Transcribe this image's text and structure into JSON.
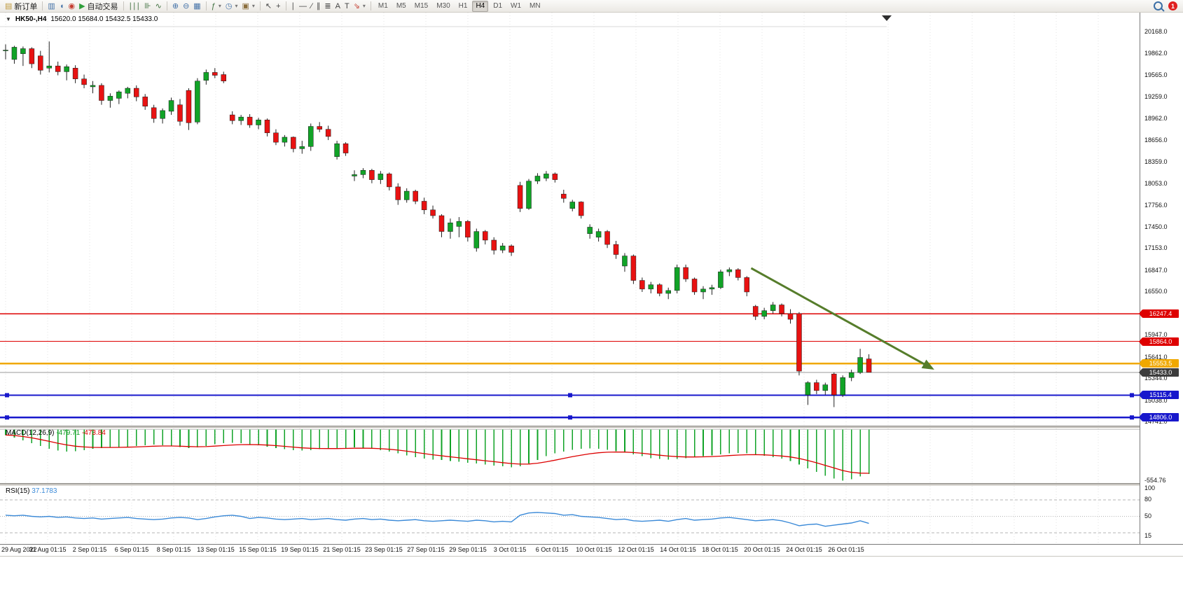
{
  "toolbar": {
    "notification_count": "1",
    "timeframes": [
      "M1",
      "M5",
      "M15",
      "M30",
      "H1",
      "H4",
      "D1",
      "W1",
      "MN"
    ],
    "active_timeframe": "H4",
    "groups": [
      {
        "items": [
          {
            "name": "new-order-button",
            "icon": "new-order-icon",
            "glyph": "▤",
            "glyph_color": "#c09a3e",
            "label": "新订单"
          }
        ]
      },
      {
        "items": [
          {
            "name": "market-watch-button",
            "icon": "market-watch-icon",
            "glyph": "▥",
            "glyph_color": "#4472a8"
          },
          {
            "name": "data-window-button",
            "icon": "data-window-icon",
            "glyph": "◖",
            "glyph_color": "#4472a8"
          },
          {
            "name": "navigator-button",
            "icon": "navigator-icon",
            "glyph": "◉",
            "glyph_color": "#c43b2e"
          },
          {
            "name": "autotrade-button",
            "icon": "autotrade-play-icon",
            "glyph": "▶",
            "glyph_color": "#2e9e3a",
            "label": "自动交易"
          }
        ]
      },
      {
        "items": [
          {
            "name": "bar-chart-button",
            "icon": "bar-chart-icon",
            "glyph": "∣∣∣",
            "glyph_color": "#3e6f3e"
          },
          {
            "name": "candlestick-chart-button",
            "icon": "candlestick-icon",
            "glyph": "⊪",
            "glyph_color": "#3e6f3e"
          },
          {
            "name": "line-chart-button",
            "icon": "line-chart-icon",
            "glyph": "∿",
            "glyph_color": "#3e6f3e"
          }
        ]
      },
      {
        "items": [
          {
            "name": "zoom-in-button",
            "icon": "zoom-in-icon",
            "glyph": "⊕",
            "glyph_color": "#4472a8"
          },
          {
            "name": "zoom-out-button",
            "icon": "zoom-out-icon",
            "glyph": "⊖",
            "glyph_color": "#4472a8"
          },
          {
            "name": "tile-windows-button",
            "icon": "tile-windows-icon",
            "glyph": "▦",
            "glyph_color": "#4472a8"
          }
        ]
      },
      {
        "items": [
          {
            "name": "indicators-button",
            "icon": "indicators-icon",
            "glyph": "ƒ",
            "glyph_color": "#3e6f3e",
            "dropdown": true
          },
          {
            "name": "periods-button",
            "icon": "clock-icon",
            "glyph": "◷",
            "glyph_color": "#4472a8",
            "dropdown": true
          },
          {
            "name": "templates-button",
            "icon": "template-icon",
            "glyph": "▣",
            "glyph_color": "#8a6d3b",
            "dropdown": true
          }
        ]
      },
      {
        "items": [
          {
            "name": "cursor-button",
            "icon": "cursor-icon",
            "glyph": "↖",
            "glyph_color": "#444444"
          },
          {
            "name": "crosshair-button",
            "icon": "crosshair-icon",
            "glyph": "+",
            "glyph_color": "#444444"
          }
        ]
      },
      {
        "items": [
          {
            "name": "vertical-line-button",
            "icon": "vertical-line-icon",
            "glyph": "∣",
            "glyph_color": "#444444"
          },
          {
            "name": "horizontal-line-button",
            "icon": "horizontal-line-icon",
            "glyph": "―",
            "glyph_color": "#444444"
          },
          {
            "name": "trendline-button",
            "icon": "trendline-icon",
            "glyph": "∕",
            "glyph_color": "#444444"
          },
          {
            "name": "channel-button",
            "icon": "channel-icon",
            "glyph": "∥",
            "glyph_color": "#444444"
          },
          {
            "name": "fibonacci-button",
            "icon": "fibonacci-icon",
            "glyph": "≣",
            "glyph_color": "#444444"
          },
          {
            "name": "text-button",
            "icon": "text-icon",
            "glyph": "A",
            "glyph_color": "#444444"
          },
          {
            "name": "label-button",
            "icon": "label-icon",
            "glyph": "T",
            "glyph_color": "#444444"
          },
          {
            "name": "arrows-button",
            "icon": "arrow-object-icon",
            "glyph": "⇘",
            "glyph_color": "#c43b2e",
            "dropdown": true
          }
        ]
      }
    ]
  },
  "chart": {
    "title": "HK50-,H4",
    "ohlc": "15620.0 15684.0 15432.5 15433.0"
  },
  "chart_data": {
    "type": "candlestick",
    "symbol": "HK50-",
    "timeframe": "H4",
    "ohlc_display": {
      "open": "15620.0",
      "high": "15684.0",
      "low": "15432.5",
      "close": "15433.0"
    },
    "ylim": [
      14692,
      20431
    ],
    "colors": {
      "bull": "#11a327",
      "bear": "#e81212",
      "wick": "#222222",
      "grid": "#e3e3e3"
    },
    "y_axis_prices": [
      20168.0,
      19862.0,
      19565.0,
      19259.0,
      18962.0,
      18656.0,
      18359.0,
      18053.0,
      17756.0,
      17450.0,
      17153.0,
      16847.0,
      16550.0,
      15947.0,
      15641.0,
      15344.0,
      15038.0,
      14741.0
    ],
    "candles": [
      [
        19900,
        19990,
        19780,
        19910
      ],
      [
        19780,
        19970,
        19720,
        19950
      ],
      [
        19860,
        19960,
        19690,
        19930
      ],
      [
        19930,
        19950,
        19660,
        19720
      ],
      [
        19830,
        19900,
        19570,
        19630
      ],
      [
        19660,
        20030,
        19600,
        19690
      ],
      [
        19690,
        19750,
        19560,
        19610
      ],
      [
        19610,
        19710,
        19490,
        19680
      ],
      [
        19660,
        19700,
        19450,
        19510
      ],
      [
        19510,
        19570,
        19380,
        19430
      ],
      [
        19400,
        19480,
        19310,
        19420
      ],
      [
        19420,
        19450,
        19150,
        19210
      ],
      [
        19210,
        19310,
        19110,
        19270
      ],
      [
        19240,
        19350,
        19160,
        19330
      ],
      [
        19310,
        19400,
        19240,
        19380
      ],
      [
        19380,
        19420,
        19200,
        19260
      ],
      [
        19260,
        19300,
        19080,
        19130
      ],
      [
        19110,
        19150,
        18900,
        18960
      ],
      [
        18960,
        19100,
        18890,
        19070
      ],
      [
        19060,
        19250,
        19010,
        19210
      ],
      [
        19150,
        19230,
        18860,
        18920
      ],
      [
        19350,
        19380,
        18800,
        18900
      ],
      [
        18910,
        19520,
        18880,
        19480
      ],
      [
        19490,
        19640,
        19430,
        19600
      ],
      [
        19600,
        19660,
        19520,
        19560
      ],
      [
        19570,
        19610,
        19450,
        19480
      ],
      [
        19010,
        19060,
        18880,
        18930
      ],
      [
        18930,
        19010,
        18870,
        18980
      ],
      [
        18980,
        19020,
        18830,
        18870
      ],
      [
        18870,
        18970,
        18810,
        18940
      ],
      [
        18940,
        18960,
        18710,
        18760
      ],
      [
        18760,
        18810,
        18590,
        18630
      ],
      [
        18630,
        18730,
        18570,
        18700
      ],
      [
        18700,
        18710,
        18490,
        18540
      ],
      [
        18540,
        18650,
        18470,
        18570
      ],
      [
        18570,
        18890,
        18510,
        18850
      ],
      [
        18850,
        18910,
        18770,
        18810
      ],
      [
        18810,
        18860,
        18660,
        18710
      ],
      [
        18430,
        18650,
        18390,
        18610
      ],
      [
        18610,
        18630,
        18440,
        18480
      ],
      [
        18160,
        18240,
        18090,
        18180
      ],
      [
        18180,
        18270,
        18130,
        18240
      ],
      [
        18240,
        18260,
        18060,
        18110
      ],
      [
        18110,
        18230,
        18050,
        18190
      ],
      [
        18190,
        18210,
        17960,
        18010
      ],
      [
        18010,
        18060,
        17760,
        17830
      ],
      [
        17830,
        17990,
        17790,
        17950
      ],
      [
        17950,
        17970,
        17770,
        17810
      ],
      [
        17810,
        17860,
        17630,
        17690
      ],
      [
        17690,
        17750,
        17570,
        17610
      ],
      [
        17610,
        17630,
        17310,
        17390
      ],
      [
        17390,
        17570,
        17290,
        17510
      ],
      [
        17460,
        17590,
        17310,
        17530
      ],
      [
        17530,
        17550,
        17250,
        17310
      ],
      [
        17160,
        17430,
        17110,
        17390
      ],
      [
        17390,
        17410,
        17210,
        17270
      ],
      [
        17270,
        17310,
        17070,
        17130
      ],
      [
        17130,
        17230,
        17090,
        17190
      ],
      [
        17190,
        17210,
        17050,
        17100
      ],
      [
        18030,
        18080,
        17660,
        17710
      ],
      [
        17710,
        18120,
        17690,
        18090
      ],
      [
        18090,
        18200,
        18050,
        18160
      ],
      [
        18130,
        18230,
        18090,
        18190
      ],
      [
        18190,
        18210,
        18070,
        18110
      ],
      [
        17910,
        17970,
        17790,
        17850
      ],
      [
        17710,
        17830,
        17670,
        17800
      ],
      [
        17800,
        17810,
        17570,
        17610
      ],
      [
        17360,
        17490,
        17290,
        17450
      ],
      [
        17310,
        17430,
        17250,
        17390
      ],
      [
        17390,
        17410,
        17160,
        17210
      ],
      [
        17210,
        17260,
        17010,
        17070
      ],
      [
        16910,
        17090,
        16830,
        17050
      ],
      [
        17050,
        17070,
        16660,
        16710
      ],
      [
        16710,
        16750,
        16550,
        16590
      ],
      [
        16590,
        16690,
        16530,
        16650
      ],
      [
        16650,
        16670,
        16490,
        16530
      ],
      [
        16530,
        16610,
        16450,
        16570
      ],
      [
        16570,
        16930,
        16530,
        16890
      ],
      [
        16890,
        16930,
        16690,
        16730
      ],
      [
        16730,
        16750,
        16510,
        16550
      ],
      [
        16550,
        16630,
        16450,
        16590
      ],
      [
        16590,
        16650,
        16510,
        16610
      ],
      [
        16610,
        16860,
        16590,
        16830
      ],
      [
        16830,
        16890,
        16770,
        16860
      ],
      [
        16860,
        16880,
        16710,
        16750
      ],
      [
        16750,
        16770,
        16490,
        16550
      ],
      [
        16350,
        16370,
        16160,
        16210
      ],
      [
        16210,
        16330,
        16170,
        16290
      ],
      [
        16290,
        16410,
        16250,
        16370
      ],
      [
        16370,
        16390,
        16210,
        16250
      ],
      [
        16250,
        16310,
        16110,
        16170
      ],
      [
        16250,
        16270,
        15390,
        15450
      ],
      [
        15120,
        15310,
        14980,
        15290
      ],
      [
        15290,
        15330,
        15130,
        15180
      ],
      [
        15180,
        15290,
        15120,
        15260
      ],
      [
        15410,
        15430,
        14950,
        15120
      ],
      [
        15120,
        15390,
        15090,
        15360
      ],
      [
        15360,
        15470,
        15310,
        15430
      ],
      [
        15430,
        15760,
        15410,
        15640
      ],
      [
        15620,
        15684,
        15432.5,
        15433
      ]
    ],
    "hlines": [
      {
        "price": 16247.4,
        "label": "16247.4",
        "color": "#de0000",
        "width": 1.4,
        "selected": false
      },
      {
        "price": 15864.0,
        "label": "15864.0",
        "color": "#de0000",
        "width": 1.4,
        "selected": false
      },
      {
        "price": 15553.5,
        "label": "15553.5",
        "color": "#f0a800",
        "width": 2.4,
        "selected": false
      },
      {
        "price": 15115.4,
        "label": "15115.4",
        "color": "#1818cc",
        "width": 2.4,
        "selected": true
      },
      {
        "price": 14806.0,
        "label": "14806.0",
        "color": "#1818cc",
        "width": 2.4,
        "selected": true
      }
    ],
    "current_price": {
      "price": 15433.0,
      "label": "15433.0",
      "line_color": "#999999",
      "box_color": "#3c3c3c"
    },
    "arrow": {
      "i1": 85.5,
      "p1": 16880,
      "i2": 106.5,
      "p2": 15470,
      "color": "#567d2b",
      "width": 3
    },
    "macd": {
      "label": "MACD(12,26,9)",
      "value_main": "-479.71",
      "value_signal": "-473.84",
      "axis_label": "-554.76",
      "axis_value": -554.76,
      "ylim": [
        -580,
        10
      ],
      "hist_color": "#11a327",
      "signal_color": "#dd0000",
      "histogram": [
        -60,
        -90,
        -120,
        -150,
        -180,
        -210,
        -230,
        -240,
        -235,
        -225,
        -210,
        -200,
        -195,
        -190,
        -185,
        -180,
        -170,
        -165,
        -170,
        -180,
        -190,
        -200,
        -195,
        -180,
        -160,
        -150,
        -145,
        -150,
        -160,
        -170,
        -185,
        -200,
        -215,
        -225,
        -230,
        -225,
        -215,
        -210,
        -205,
        -200,
        -195,
        -200,
        -210,
        -225,
        -240,
        -260,
        -280,
        -300,
        -315,
        -325,
        -330,
        -340,
        -350,
        -360,
        -370,
        -380,
        -390,
        -400,
        -410,
        -400,
        -370,
        -330,
        -290,
        -260,
        -240,
        -220,
        -210,
        -205,
        -210,
        -220,
        -235,
        -250,
        -270,
        -290,
        -310,
        -320,
        -325,
        -320,
        -310,
        -300,
        -290,
        -280,
        -270,
        -260,
        -255,
        -260,
        -270,
        -285,
        -300,
        -315,
        -340,
        -380,
        -420,
        -460,
        -500,
        -530,
        -555,
        -540,
        -510,
        -480
      ]
    },
    "rsi": {
      "label": "RSI(15)",
      "value": "37.1783",
      "ylim": [
        0,
        105
      ],
      "line_color": "#3b8ad8",
      "levels": [
        80,
        50,
        20
      ],
      "axis_labels": [
        {
          "v": 100,
          "t": "100"
        },
        {
          "v": 80,
          "t": "80"
        },
        {
          "v": 50,
          "t": "50"
        },
        {
          "v": 15,
          "t": "15"
        }
      ],
      "values": [
        52,
        51,
        52,
        50,
        49,
        50,
        48,
        49,
        47,
        46,
        47,
        45,
        46,
        47,
        48,
        46,
        45,
        44,
        45,
        47,
        48,
        47,
        44,
        46,
        49,
        51,
        52,
        50,
        46,
        48,
        47,
        45,
        44,
        45,
        46,
        44,
        45,
        46,
        44,
        43,
        45,
        46,
        44,
        45,
        43,
        42,
        43,
        44,
        42,
        41,
        42,
        43,
        42,
        41,
        43,
        42,
        40,
        41,
        40,
        52,
        56,
        57,
        56,
        55,
        52,
        53,
        50,
        49,
        48,
        46,
        44,
        45,
        42,
        41,
        42,
        43,
        41,
        44,
        46,
        43,
        44,
        45,
        47,
        48,
        46,
        44,
        42,
        43,
        44,
        42,
        38,
        33,
        35,
        36,
        32,
        34,
        36,
        38,
        42,
        37.2
      ]
    }
  },
  "time_axis": {
    "labels": [
      "29 Aug 2022",
      "31 Aug 01:15",
      "2 Sep 01:15",
      "6 Sep 01:15",
      "8 Sep 01:15",
      "13 Sep 01:15",
      "15 Sep 01:15",
      "19 Sep 01:15",
      "21 Sep 01:15",
      "23 Sep 01:15",
      "27 Sep 01:15",
      "29 Sep 01:15",
      "3 Oct 01:15",
      "6 Oct 01:15",
      "10 Oct 01:15",
      "12 Oct 01:15",
      "14 Oct 01:15",
      "18 Oct 01:15",
      "20 Oct 01:15",
      "24 Oct 01:15",
      "26 Oct 01:15"
    ]
  }
}
